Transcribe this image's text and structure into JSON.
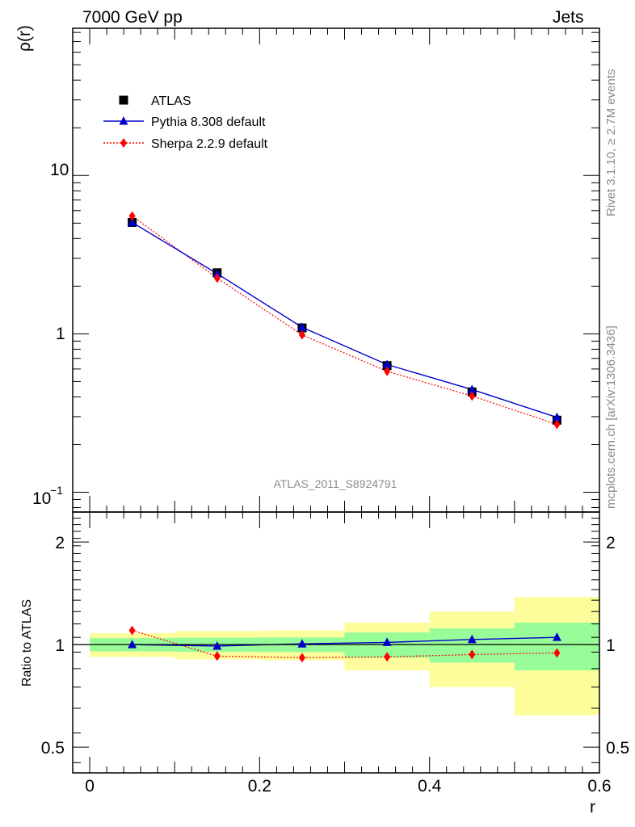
{
  "header": {
    "left": "7000 GeV pp",
    "right": "Jets"
  },
  "side_labels": {
    "rivet": "Rivet 3.1.10, ≥ 2.7M events",
    "mcplots": "mcplots.cern.ch [arXiv:1306.3436]"
  },
  "watermark": "ATLAS_2011_S8924791",
  "chart_data": [
    {
      "type": "line",
      "panel": "main",
      "ylabel": "ρ(r)",
      "yscale": "log",
      "xlim": [
        -0.02,
        0.6
      ],
      "ylim": [
        0.075,
        85
      ],
      "ytick_labels": [
        "10⁻¹",
        "1",
        "10"
      ],
      "x": [
        0.05,
        0.15,
        0.25,
        0.35,
        0.45,
        0.55
      ],
      "legend_position": "top-left",
      "series": [
        {
          "name": "ATLAS",
          "marker": "square",
          "color": "#000000",
          "values": [
            5.05,
            2.43,
            1.09,
            0.63,
            0.43,
            0.285
          ]
        },
        {
          "name": "Pythia 8.308 default",
          "marker": "triangle",
          "color": "#0000cc",
          "line": "solid",
          "values": [
            5.05,
            2.4,
            1.1,
            0.64,
            0.445,
            0.297
          ]
        },
        {
          "name": "Sherpa 2.2.9 default",
          "marker": "diamond",
          "color": "#ff0000",
          "line": "dotted",
          "values": [
            5.55,
            2.25,
            0.985,
            0.58,
            0.405,
            0.268
          ]
        }
      ]
    },
    {
      "type": "line",
      "panel": "ratio",
      "ylabel": "Ratio to ATLAS",
      "xlabel": "r",
      "yscale": "log",
      "xlim": [
        -0.02,
        0.6
      ],
      "ylim": [
        0.42,
        2.45
      ],
      "ytick_labels": [
        "0.5",
        "1",
        "2"
      ],
      "xtick_labels": [
        "0",
        "0.2",
        "0.4",
        "0.6"
      ],
      "bins": [
        [
          0.0,
          0.1
        ],
        [
          0.1,
          0.2
        ],
        [
          0.2,
          0.3
        ],
        [
          0.3,
          0.4
        ],
        [
          0.4,
          0.5
        ],
        [
          0.5,
          0.6
        ]
      ],
      "band_inner": [
        [
          0.955,
          1.045
        ],
        [
          0.952,
          1.048
        ],
        [
          0.95,
          1.05
        ],
        [
          0.915,
          1.085
        ],
        [
          0.885,
          1.115
        ],
        [
          0.84,
          1.16
        ]
      ],
      "band_outer": [
        [
          0.92,
          1.08
        ],
        [
          0.905,
          1.095
        ],
        [
          0.9,
          1.1
        ],
        [
          0.84,
          1.16
        ],
        [
          0.75,
          1.25
        ],
        [
          0.62,
          1.38
        ]
      ],
      "band_colors": {
        "inner": "#98fc98",
        "outer": "#fdfd9c"
      },
      "x": [
        0.05,
        0.15,
        0.25,
        0.35,
        0.45,
        0.55
      ],
      "series": [
        {
          "name": "Pythia 8.308 default",
          "marker": "triangle",
          "color": "#0000cc",
          "line": "solid",
          "values": [
            1.0,
            0.99,
            1.005,
            1.015,
            1.035,
            1.05
          ]
        },
        {
          "name": "Sherpa 2.2.9 default",
          "marker": "diamond",
          "color": "#ff0000",
          "line": "dotted",
          "values": [
            1.1,
            0.925,
            0.915,
            0.92,
            0.935,
            0.945
          ]
        }
      ]
    }
  ]
}
